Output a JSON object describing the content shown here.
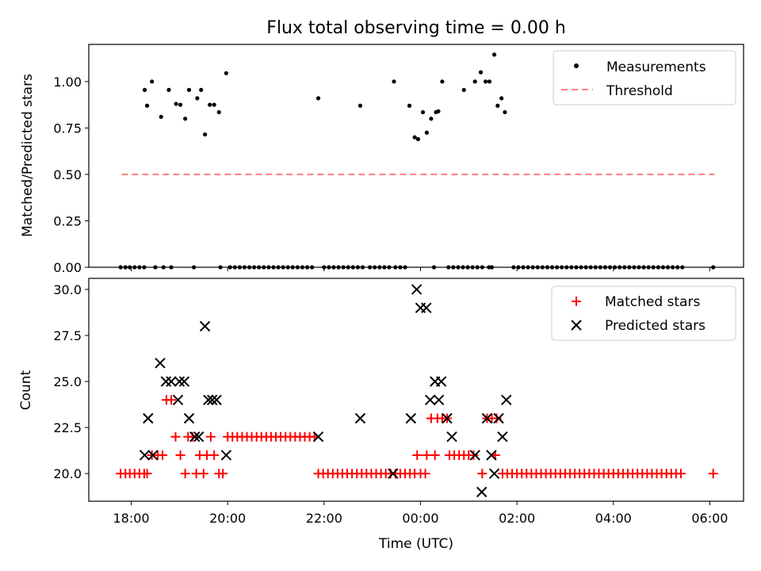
{
  "figure": {
    "title": "Flux total observing time = 0.00 h",
    "xlabel": "Time (UTC)",
    "x_ticks": [
      "18:00",
      "20:00",
      "22:00",
      "00:00",
      "02:00",
      "04:00",
      "06:00"
    ],
    "x_tick_hours": [
      18,
      20,
      22,
      24,
      26,
      28,
      30
    ],
    "xlim_hours": [
      17.12,
      30.7
    ]
  },
  "colors": {
    "measurements": "#000000",
    "threshold": "#ff7f7f",
    "matched": "#ff0000",
    "predicted": "#000000"
  },
  "chart_data": [
    {
      "type": "scatter",
      "ylabel": "Matched/Predicted stars",
      "ylim": [
        0,
        1.2
      ],
      "y_ticks": [
        "0.00",
        "0.25",
        "0.50",
        "0.75",
        "1.00"
      ],
      "y_tick_values": [
        0,
        0.25,
        0.5,
        0.75,
        1.0
      ],
      "grid": false,
      "legend_position": "top-right",
      "legend": [
        "Measurements",
        "Threshold"
      ],
      "threshold": {
        "name": "Threshold",
        "value": 0.5,
        "x_range_hours": [
          17.8,
          30.1
        ]
      },
      "measurements_nonzero": {
        "name": "Measurements",
        "x_hours": [
          18.28,
          18.33,
          18.43,
          18.62,
          18.78,
          18.93,
          19.02,
          19.12,
          19.2,
          19.37,
          19.45,
          19.53,
          19.63,
          19.72,
          19.82,
          19.97,
          21.88,
          22.75,
          23.45,
          23.77,
          23.88,
          23.95,
          24.05,
          24.13,
          24.22,
          24.32,
          24.37,
          24.45,
          24.9,
          25.13,
          25.25,
          25.35,
          25.43,
          25.53,
          25.6,
          25.68,
          25.75
        ],
        "y": [
          0.955,
          0.87,
          1.0,
          0.81,
          0.955,
          0.88,
          0.875,
          0.8,
          0.955,
          0.91,
          0.955,
          0.715,
          0.875,
          0.875,
          0.835,
          1.045,
          0.91,
          0.87,
          1.0,
          0.87,
          0.7,
          0.69,
          0.835,
          0.725,
          0.8,
          0.835,
          0.84,
          1.0,
          0.955,
          1.0,
          1.05,
          1.0,
          1.0,
          1.145,
          0.87,
          0.91,
          0.835
        ]
      },
      "measurements_zero": {
        "name": "Measurements",
        "x_hours": [
          17.78,
          17.88,
          17.97,
          18.07,
          18.17,
          18.27,
          18.5,
          18.67,
          18.83,
          19.3,
          19.85,
          20.05,
          20.15,
          20.25,
          20.35,
          20.45,
          20.55,
          20.65,
          20.75,
          20.85,
          20.95,
          21.05,
          21.15,
          21.25,
          21.35,
          21.45,
          21.55,
          21.65,
          21.75,
          22.0,
          22.1,
          22.2,
          22.3,
          22.4,
          22.5,
          22.6,
          22.7,
          22.8,
          22.95,
          23.05,
          23.15,
          23.25,
          23.35,
          23.48,
          23.58,
          23.68,
          24.28,
          24.58,
          24.68,
          24.78,
          24.88,
          24.98,
          25.08,
          25.18,
          25.28,
          25.42,
          25.48,
          25.93,
          26.03,
          26.13,
          26.23,
          26.33,
          26.43,
          26.53,
          26.63,
          26.73,
          26.83,
          26.93,
          27.03,
          27.13,
          27.23,
          27.33,
          27.43,
          27.53,
          27.63,
          27.73,
          27.83,
          27.93,
          28.03,
          28.13,
          28.23,
          28.33,
          28.43,
          28.53,
          28.63,
          28.73,
          28.83,
          28.93,
          29.03,
          29.13,
          29.23,
          29.33,
          29.43,
          30.07
        ],
        "y_value": 0.0
      }
    },
    {
      "type": "scatter",
      "ylabel": "Count",
      "ylim": [
        18.5,
        30.6
      ],
      "y_ticks": [
        "20.0",
        "22.5",
        "25.0",
        "27.5",
        "30.0"
      ],
      "y_tick_values": [
        20.0,
        22.5,
        25.0,
        27.5,
        30.0
      ],
      "grid": false,
      "legend_position": "top-right",
      "legend": [
        "Matched stars",
        "Predicted stars"
      ],
      "series": [
        {
          "name": "Matched stars",
          "points": [
            [
              17.78,
              20
            ],
            [
              17.88,
              20
            ],
            [
              17.97,
              20
            ],
            [
              18.07,
              20
            ],
            [
              18.17,
              20
            ],
            [
              18.27,
              20
            ],
            [
              18.33,
              20
            ],
            [
              18.43,
              21
            ],
            [
              18.55,
              21
            ],
            [
              18.65,
              21
            ],
            [
              18.73,
              24
            ],
            [
              18.83,
              24
            ],
            [
              18.92,
              22
            ],
            [
              19.02,
              21
            ],
            [
              19.12,
              20
            ],
            [
              19.18,
              22
            ],
            [
              19.27,
              22
            ],
            [
              19.35,
              20
            ],
            [
              19.42,
              21
            ],
            [
              19.5,
              20
            ],
            [
              19.57,
              21
            ],
            [
              19.65,
              22
            ],
            [
              19.72,
              21
            ],
            [
              19.82,
              20
            ],
            [
              19.9,
              20
            ],
            [
              20.0,
              22
            ],
            [
              20.1,
              22
            ],
            [
              20.2,
              22
            ],
            [
              20.3,
              22
            ],
            [
              20.4,
              22
            ],
            [
              20.5,
              22
            ],
            [
              20.6,
              22
            ],
            [
              20.7,
              22
            ],
            [
              20.8,
              22
            ],
            [
              20.9,
              22
            ],
            [
              21.0,
              22
            ],
            [
              21.1,
              22
            ],
            [
              21.2,
              22
            ],
            [
              21.3,
              22
            ],
            [
              21.4,
              22
            ],
            [
              21.5,
              22
            ],
            [
              21.6,
              22
            ],
            [
              21.7,
              22
            ],
            [
              21.8,
              22
            ],
            [
              21.88,
              20
            ],
            [
              21.98,
              20
            ],
            [
              22.08,
              20
            ],
            [
              22.18,
              20
            ],
            [
              22.28,
              20
            ],
            [
              22.38,
              20
            ],
            [
              22.48,
              20
            ],
            [
              22.58,
              20
            ],
            [
              22.68,
              20
            ],
            [
              22.78,
              20
            ],
            [
              22.88,
              20
            ],
            [
              22.98,
              20
            ],
            [
              23.08,
              20
            ],
            [
              23.18,
              20
            ],
            [
              23.28,
              20
            ],
            [
              23.38,
              20
            ],
            [
              23.48,
              20
            ],
            [
              23.58,
              20
            ],
            [
              23.68,
              20
            ],
            [
              23.78,
              20
            ],
            [
              23.88,
              20
            ],
            [
              24.0,
              20
            ],
            [
              24.1,
              20
            ],
            [
              23.93,
              21
            ],
            [
              24.13,
              21
            ],
            [
              24.3,
              21
            ],
            [
              24.22,
              23
            ],
            [
              24.35,
              23
            ],
            [
              24.45,
              23
            ],
            [
              24.55,
              23
            ],
            [
              24.6,
              21
            ],
            [
              24.7,
              21
            ],
            [
              24.8,
              21
            ],
            [
              24.9,
              21
            ],
            [
              25.0,
              21
            ],
            [
              25.1,
              21
            ],
            [
              25.28,
              20
            ],
            [
              25.38,
              23
            ],
            [
              25.48,
              23
            ],
            [
              25.58,
              23
            ],
            [
              25.55,
              21
            ],
            [
              25.7,
              20
            ],
            [
              25.8,
              20
            ],
            [
              25.9,
              20
            ],
            [
              26.0,
              20
            ],
            [
              26.1,
              20
            ],
            [
              26.2,
              20
            ],
            [
              26.3,
              20
            ],
            [
              26.4,
              20
            ],
            [
              26.5,
              20
            ],
            [
              26.6,
              20
            ],
            [
              26.7,
              20
            ],
            [
              26.8,
              20
            ],
            [
              26.9,
              20
            ],
            [
              27.0,
              20
            ],
            [
              27.1,
              20
            ],
            [
              27.2,
              20
            ],
            [
              27.3,
              20
            ],
            [
              27.4,
              20
            ],
            [
              27.5,
              20
            ],
            [
              27.6,
              20
            ],
            [
              27.7,
              20
            ],
            [
              27.8,
              20
            ],
            [
              27.9,
              20
            ],
            [
              28.0,
              20
            ],
            [
              28.1,
              20
            ],
            [
              28.2,
              20
            ],
            [
              28.3,
              20
            ],
            [
              28.4,
              20
            ],
            [
              28.5,
              20
            ],
            [
              28.6,
              20
            ],
            [
              28.7,
              20
            ],
            [
              28.8,
              20
            ],
            [
              28.9,
              20
            ],
            [
              29.0,
              20
            ],
            [
              29.1,
              20
            ],
            [
              29.2,
              20
            ],
            [
              29.3,
              20
            ],
            [
              29.4,
              20
            ],
            [
              30.07,
              20
            ]
          ]
        },
        {
          "name": "Predicted stars",
          "points": [
            [
              18.28,
              21
            ],
            [
              18.35,
              23
            ],
            [
              18.45,
              21
            ],
            [
              18.6,
              26
            ],
            [
              18.72,
              25
            ],
            [
              18.83,
              25
            ],
            [
              18.97,
              24
            ],
            [
              19.0,
              25
            ],
            [
              19.1,
              25
            ],
            [
              19.2,
              23
            ],
            [
              19.32,
              22
            ],
            [
              19.4,
              22
            ],
            [
              19.53,
              28
            ],
            [
              19.6,
              24
            ],
            [
              19.68,
              24
            ],
            [
              19.77,
              24
            ],
            [
              19.97,
              21
            ],
            [
              21.88,
              22
            ],
            [
              22.75,
              23
            ],
            [
              23.43,
              20
            ],
            [
              23.8,
              23
            ],
            [
              23.92,
              30
            ],
            [
              24.0,
              29
            ],
            [
              24.12,
              29
            ],
            [
              24.2,
              24
            ],
            [
              24.3,
              25
            ],
            [
              24.38,
              24
            ],
            [
              24.43,
              25
            ],
            [
              24.55,
              23
            ],
            [
              24.65,
              22
            ],
            [
              25.13,
              21
            ],
            [
              25.27,
              19
            ],
            [
              25.38,
              23
            ],
            [
              25.47,
              21
            ],
            [
              25.53,
              20
            ],
            [
              25.62,
              23
            ],
            [
              25.7,
              22
            ],
            [
              25.78,
              24
            ]
          ]
        }
      ]
    }
  ]
}
